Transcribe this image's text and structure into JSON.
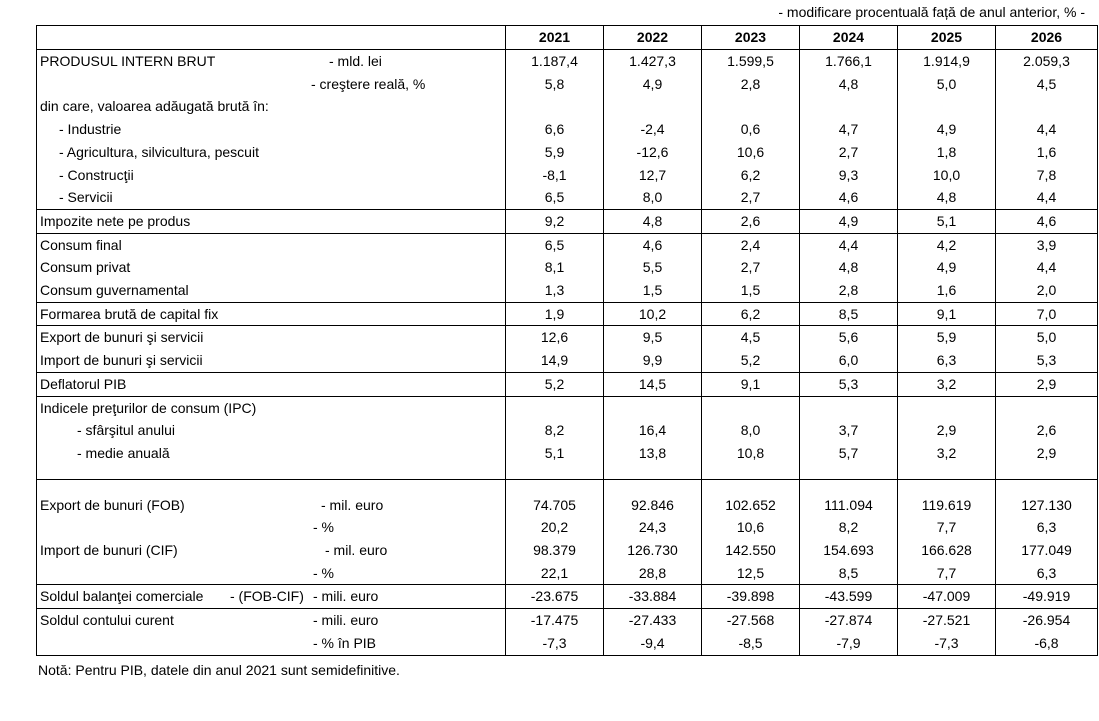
{
  "caption": "- modificare procentuală față de anul anterior, % -",
  "years": [
    "2021",
    "2022",
    "2023",
    "2024",
    "2025",
    "2026"
  ],
  "rows": {
    "pib_mld": {
      "label": "PRODUSUL INTERN BRUT",
      "unit": "- mld. lei",
      "values": [
        "1.187,4",
        "1.427,3",
        "1.599,5",
        "1.766,1",
        "1.914,9",
        "2.059,3"
      ]
    },
    "pib_real": {
      "label": "",
      "unit": "- creştere reală, %",
      "values": [
        "5,8",
        "4,9",
        "2,8",
        "4,8",
        "5,0",
        "4,5"
      ]
    },
    "vab_header": {
      "label": "din care, valoarea adăugată brută în:"
    },
    "industrie": {
      "label": "- Industrie",
      "values": [
        "6,6",
        "-2,4",
        "0,6",
        "4,7",
        "4,9",
        "4,4"
      ]
    },
    "agricultura": {
      "label": "- Agricultura, silvicultura, pescuit",
      "values": [
        "5,9",
        "-12,6",
        "10,6",
        "2,7",
        "1,8",
        "1,6"
      ]
    },
    "constructii": {
      "label": "- Construcţii",
      "values": [
        "-8,1",
        "12,7",
        "6,2",
        "9,3",
        "10,0",
        "7,8"
      ]
    },
    "servicii": {
      "label": "- Servicii",
      "values": [
        "6,5",
        "8,0",
        "2,7",
        "4,6",
        "4,8",
        "4,4"
      ]
    },
    "impozite": {
      "label": "Impozite nete pe produs",
      "values": [
        "9,2",
        "4,8",
        "2,6",
        "4,9",
        "5,1",
        "4,6"
      ]
    },
    "consum_final": {
      "label": "Consum final",
      "values": [
        "6,5",
        "4,6",
        "2,4",
        "4,4",
        "4,2",
        "3,9"
      ]
    },
    "consum_privat": {
      "label": "Consum privat",
      "values": [
        "8,1",
        "5,5",
        "2,7",
        "4,8",
        "4,9",
        "4,4"
      ]
    },
    "consum_guv": {
      "label": "Consum guvernamental",
      "values": [
        "1,3",
        "1,5",
        "1,5",
        "2,8",
        "1,6",
        "2,0"
      ]
    },
    "fbcf": {
      "label": "Formarea brută de capital fix",
      "values": [
        "1,9",
        "10,2",
        "6,2",
        "8,5",
        "9,1",
        "7,0"
      ]
    },
    "export_bs": {
      "label": "Export de bunuri şi servicii",
      "values": [
        "12,6",
        "9,5",
        "4,5",
        "5,6",
        "5,9",
        "5,0"
      ]
    },
    "import_bs": {
      "label": "Import de bunuri şi servicii",
      "values": [
        "14,9",
        "9,9",
        "5,2",
        "6,0",
        "6,3",
        "5,3"
      ]
    },
    "deflator": {
      "label": "Deflatorul PIB",
      "values": [
        "5,2",
        "14,5",
        "9,1",
        "5,3",
        "3,2",
        "2,9"
      ]
    },
    "ipc_header": {
      "label": "Indicele preţurilor de consum (IPC)"
    },
    "ipc_sfarsit": {
      "label": "- sfârşitul anului",
      "values": [
        "8,2",
        "16,4",
        "8,0",
        "3,7",
        "2,9",
        "2,6"
      ]
    },
    "ipc_medie": {
      "label": "- medie anuală",
      "values": [
        "5,1",
        "13,8",
        "10,8",
        "5,7",
        "3,2",
        "2,9"
      ]
    },
    "export_fob": {
      "label": "Export de bunuri (FOB)",
      "unit": "- mil. euro",
      "values": [
        "74.705",
        "92.846",
        "102.652",
        "111.094",
        "119.619",
        "127.130"
      ]
    },
    "export_fob_pct": {
      "label": "",
      "unit": "- %",
      "values": [
        "20,2",
        "24,3",
        "10,6",
        "8,2",
        "7,7",
        "6,3"
      ]
    },
    "import_cif": {
      "label": "Import de bunuri (CIF)",
      "unit": "- mil. euro",
      "values": [
        "98.379",
        "126.730",
        "142.550",
        "154.693",
        "166.628",
        "177.049"
      ]
    },
    "import_cif_pct": {
      "label": "",
      "unit": "- %",
      "values": [
        "22,1",
        "28,8",
        "12,5",
        "8,5",
        "7,7",
        "6,3"
      ]
    },
    "sold_comercial": {
      "label": "Soldul balanţei comerciale",
      "mid": "- (FOB-CIF)",
      "unit": "- mili. euro",
      "values": [
        "-23.675",
        "-33.884",
        "-39.898",
        "-43.599",
        "-47.009",
        "-49.919"
      ]
    },
    "cont_curent": {
      "label": "Soldul contului curent",
      "unit": "- mili. euro",
      "values": [
        "-17.475",
        "-27.433",
        "-27.568",
        "-27.874",
        "-27.521",
        "-26.954"
      ]
    },
    "cont_curent_pib": {
      "label": "",
      "unit": "- % în PIB",
      "values": [
        "-7,3",
        "-9,4",
        "-8,5",
        "-7,9",
        "-7,3",
        "-6,8"
      ]
    }
  },
  "note": "Notă: Pentru PIB, datele din anul 2021 sunt semidefinitive."
}
